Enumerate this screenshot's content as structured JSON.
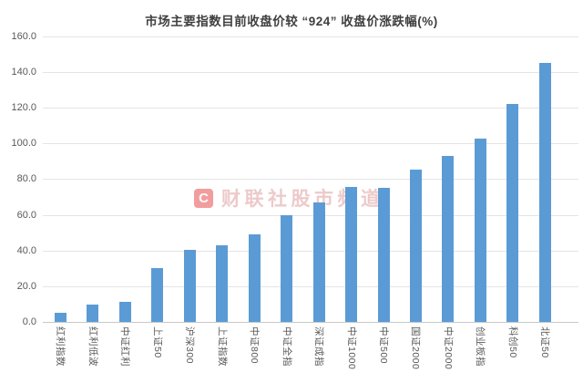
{
  "watermark": {
    "logo": "C",
    "text": "财联社股市频道"
  },
  "chart_data": {
    "type": "bar",
    "title": "市场主要指数目前收盘价较 “924” 收盘价涨跌幅(%)",
    "categories": [
      "红利指数",
      "红利低波",
      "中证红利",
      "上证50",
      "沪深300",
      "上证指数",
      "中证800",
      "中证全指",
      "深证成指",
      "中证1000",
      "中证500",
      "国证2000",
      "中证2000",
      "创业板指",
      "科创50",
      "北证50"
    ],
    "values": [
      5.6,
      10.2,
      11.4,
      30.6,
      40.8,
      43.4,
      49.5,
      60.1,
      67.1,
      76.0,
      75.4,
      85.7,
      93.3,
      102.9,
      122.6,
      145.2
    ],
    "xlabel": "",
    "ylabel": "",
    "ylim": [
      0,
      160
    ],
    "ytick_step": 20,
    "ytick_format_decimals": 1,
    "grid": true,
    "legend": null,
    "bar_color": "#5B9BD5",
    "gridline_color": "#E4E4E4",
    "axis_line_color": "#C8C8C8",
    "tick_label_color": "#595959",
    "title_color": "#3F3F3F"
  }
}
